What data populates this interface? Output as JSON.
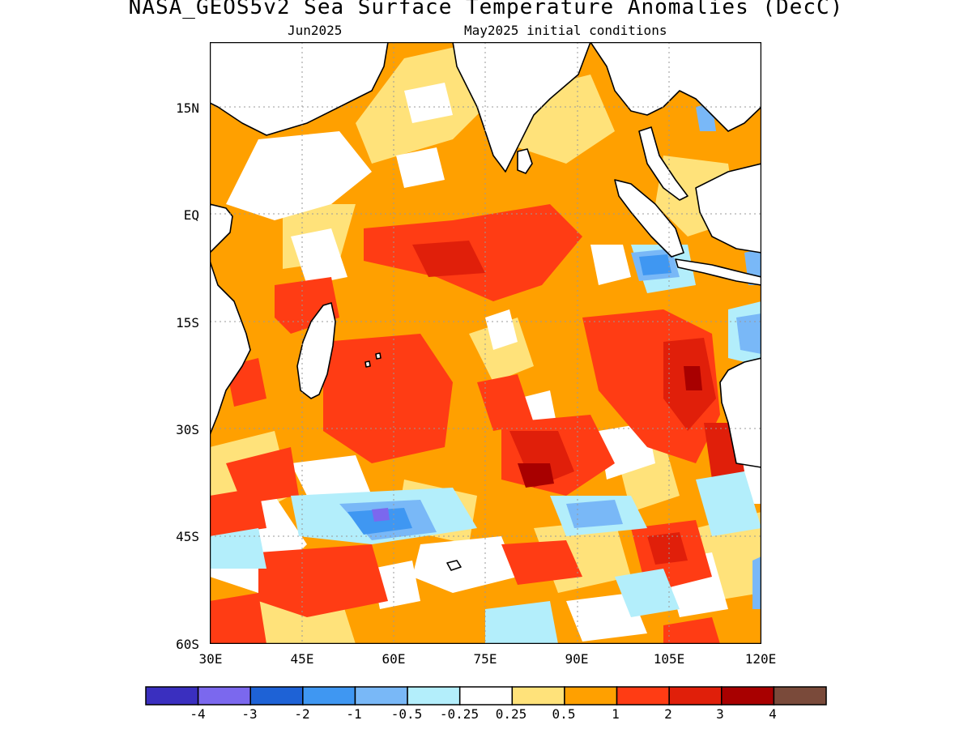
{
  "title": "NASA_GEOS5v2 Sea Surface Temperature Anomalies (DecC)",
  "subtitle_left": "Jun2025",
  "subtitle_right": "May2025 initial conditions",
  "lat_labels": [
    "15N",
    "EQ",
    "15S",
    "30S",
    "45S",
    "60S"
  ],
  "lon_labels": [
    "30E",
    "45E",
    "60E",
    "75E",
    "90E",
    "105E",
    "120E"
  ],
  "colorbar": {
    "colors": [
      "#3a2fbf",
      "#7b68ee",
      "#1e62d6",
      "#3f97f2",
      "#79b8f7",
      "#b3eefb",
      "#ffffff",
      "#ffe27a",
      "#ffa000",
      "#ff3c14",
      "#e01f0a",
      "#a80000",
      "#7a4a3a"
    ],
    "labels": [
      "-4",
      "-3",
      "-2",
      "-1",
      "-0.5",
      "-0.25",
      "0.25",
      "0.5",
      "1",
      "2",
      "3",
      "4"
    ]
  }
}
